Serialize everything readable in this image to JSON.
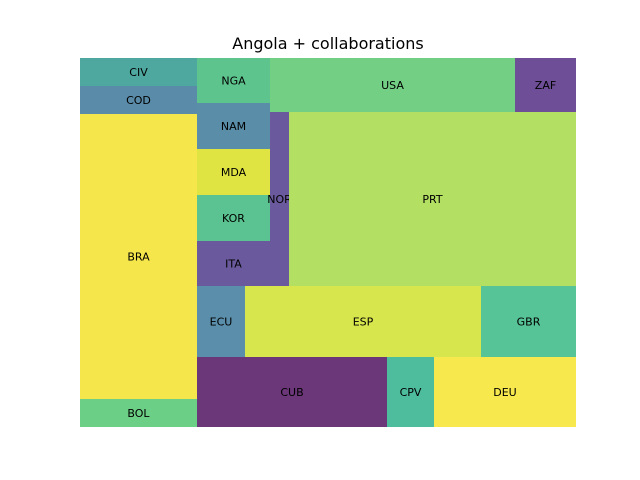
{
  "chart_data": {
    "type": "treemap",
    "title": "Angola + collaborations",
    "axes_visible": false,
    "tiles": [
      {
        "label": "BRA",
        "value": 100,
        "color": "#f5e64b"
      },
      {
        "label": "BOL",
        "value": 10,
        "color": "#6ccf86"
      },
      {
        "label": "COD",
        "value": 10,
        "color": "#5a8ba8"
      },
      {
        "label": "CIV",
        "value": 10,
        "color": "#4fa8a0"
      },
      {
        "label": "CUB",
        "value": 48,
        "color": "#6b3779"
      },
      {
        "label": "CPV",
        "value": 12,
        "color": "#4dbd9e"
      },
      {
        "label": "DEU",
        "value": 36,
        "color": "#f6e84d"
      },
      {
        "label": "ECU",
        "value": 12,
        "color": "#5a8eaa"
      },
      {
        "label": "ESP",
        "value": 59,
        "color": "#d8e64e"
      },
      {
        "label": "GBR",
        "value": 24,
        "color": "#57c497"
      },
      {
        "label": "ITA",
        "value": 11,
        "color": "#6a5a9d"
      },
      {
        "label": "KOR",
        "value": 11,
        "color": "#5bc391"
      },
      {
        "label": "MDA",
        "value": 11,
        "color": "#dfe443"
      },
      {
        "label": "NAM",
        "value": 11,
        "color": "#5a8da8"
      },
      {
        "label": "NGA",
        "value": 11,
        "color": "#5dc48e"
      },
      {
        "label": "NOR",
        "value": 6,
        "color": "#6a5a9d"
      },
      {
        "label": "PRT",
        "value": 100,
        "color": "#b3df63"
      },
      {
        "label": "USA",
        "value": 47,
        "color": "#72cf84"
      },
      {
        "label": "ZAF",
        "value": 11,
        "color": "#6e4e96"
      }
    ]
  }
}
